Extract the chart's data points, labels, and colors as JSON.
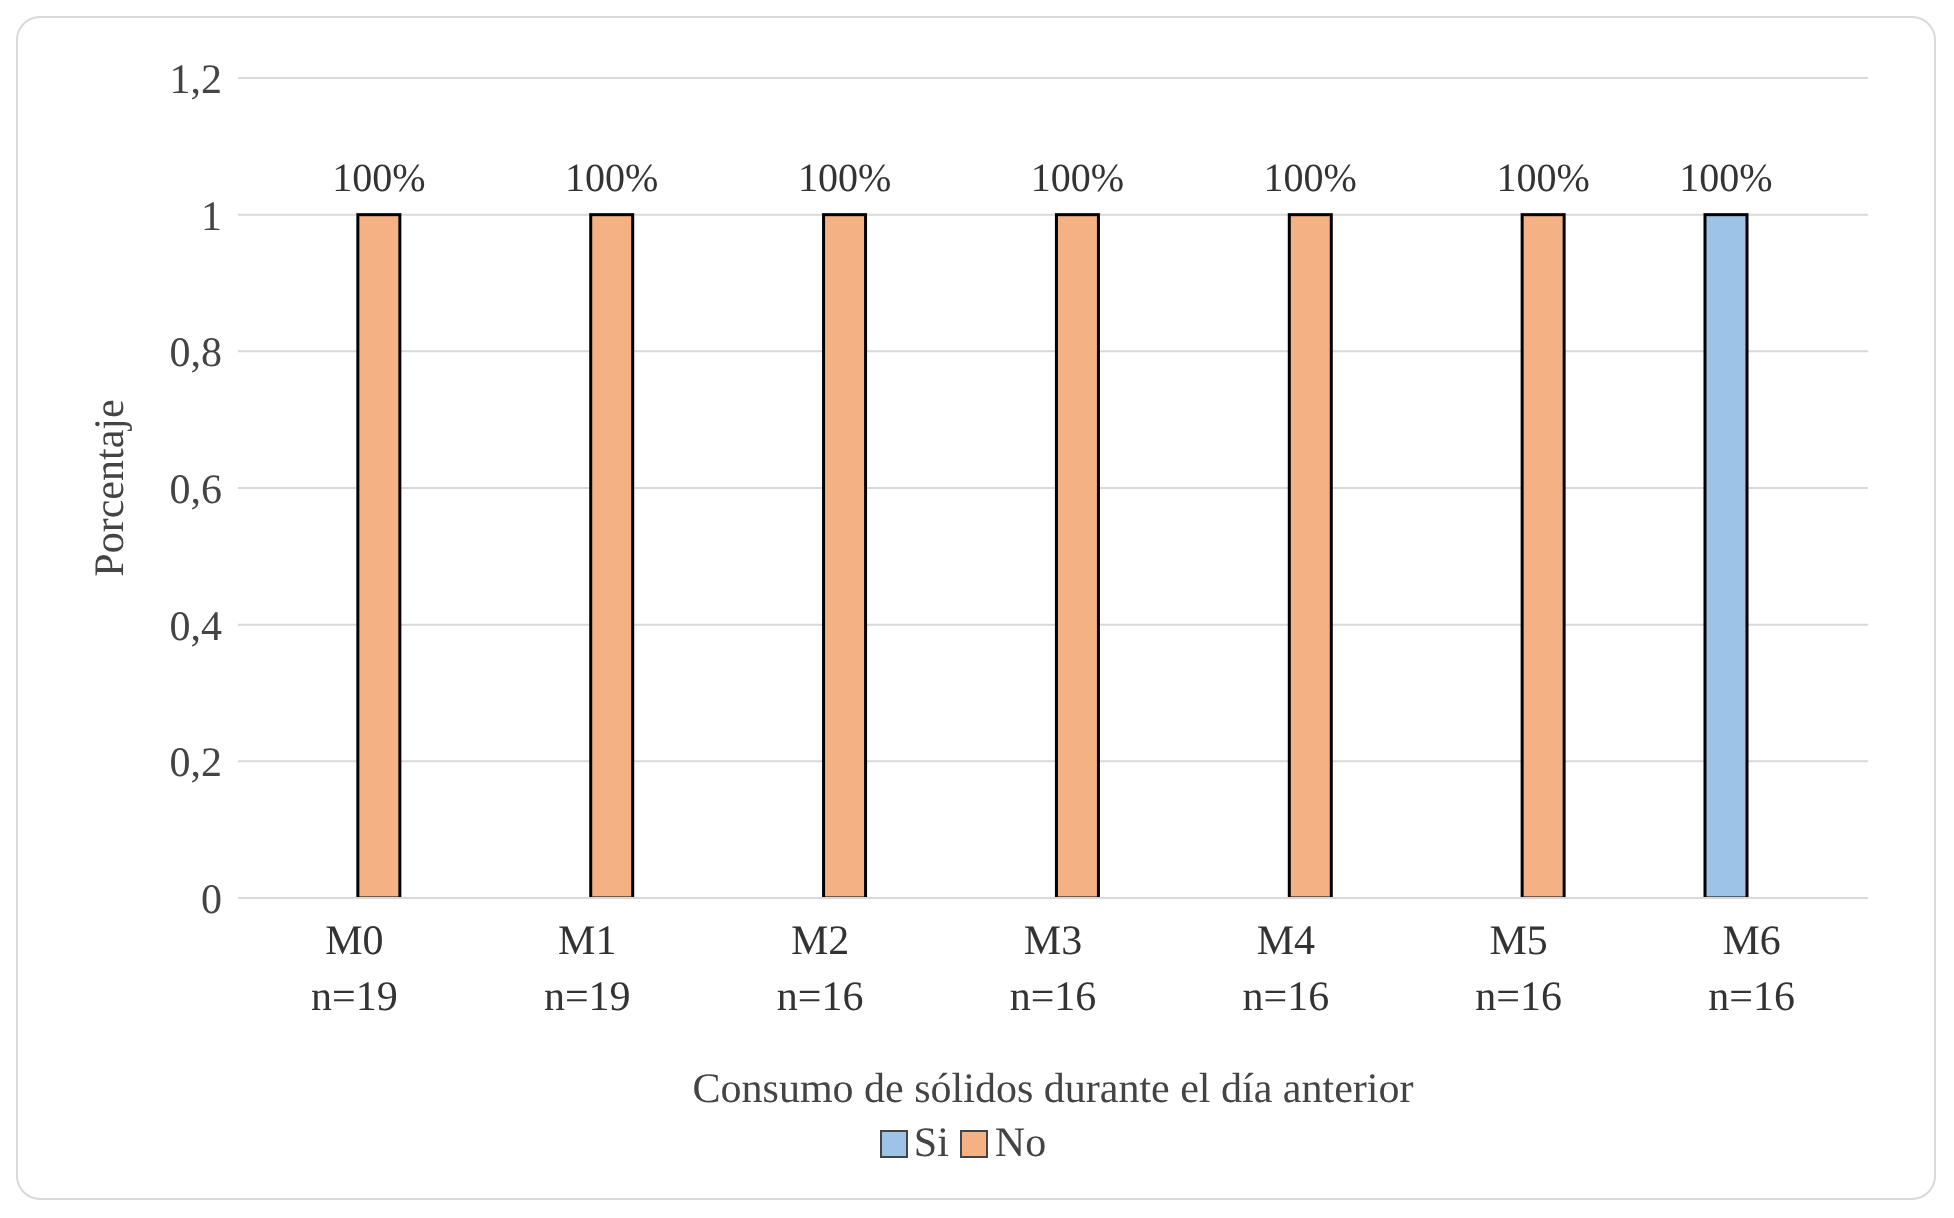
{
  "chart_data": {
    "type": "bar",
    "ylabel": "Porcentaje",
    "xlabel": "Consumo de sólidos durante el día anterior",
    "categories": [
      "M0\nn=19",
      "M1\nn=19",
      "M2\nn=16",
      "M3\nn=16",
      "M4\nn=16",
      "M5\nn=16",
      "M6\nn=16"
    ],
    "series": [
      {
        "name": "Si",
        "color": "#9dc3e6",
        "values": [
          null,
          null,
          null,
          null,
          null,
          null,
          1
        ],
        "value_labels": [
          null,
          null,
          null,
          null,
          null,
          null,
          "100%"
        ]
      },
      {
        "name": "No",
        "color": "#f4b183",
        "values": [
          1,
          1,
          1,
          1,
          1,
          1,
          null
        ],
        "value_labels": [
          "100%",
          "100%",
          "100%",
          "100%",
          "100%",
          "100%",
          null
        ]
      }
    ],
    "ylim": [
      0,
      1.2
    ],
    "yticks": [
      0,
      {
        "value": 0.2,
        "label": "0,2"
      },
      {
        "value": 0.4,
        "label": "0,4"
      },
      {
        "value": 0.6,
        "label": "0,6"
      },
      {
        "value": 0.8,
        "label": "0,8"
      },
      1,
      {
        "value": 1.2,
        "label": "1,2"
      }
    ],
    "grid": "y",
    "legend": "bottom"
  }
}
